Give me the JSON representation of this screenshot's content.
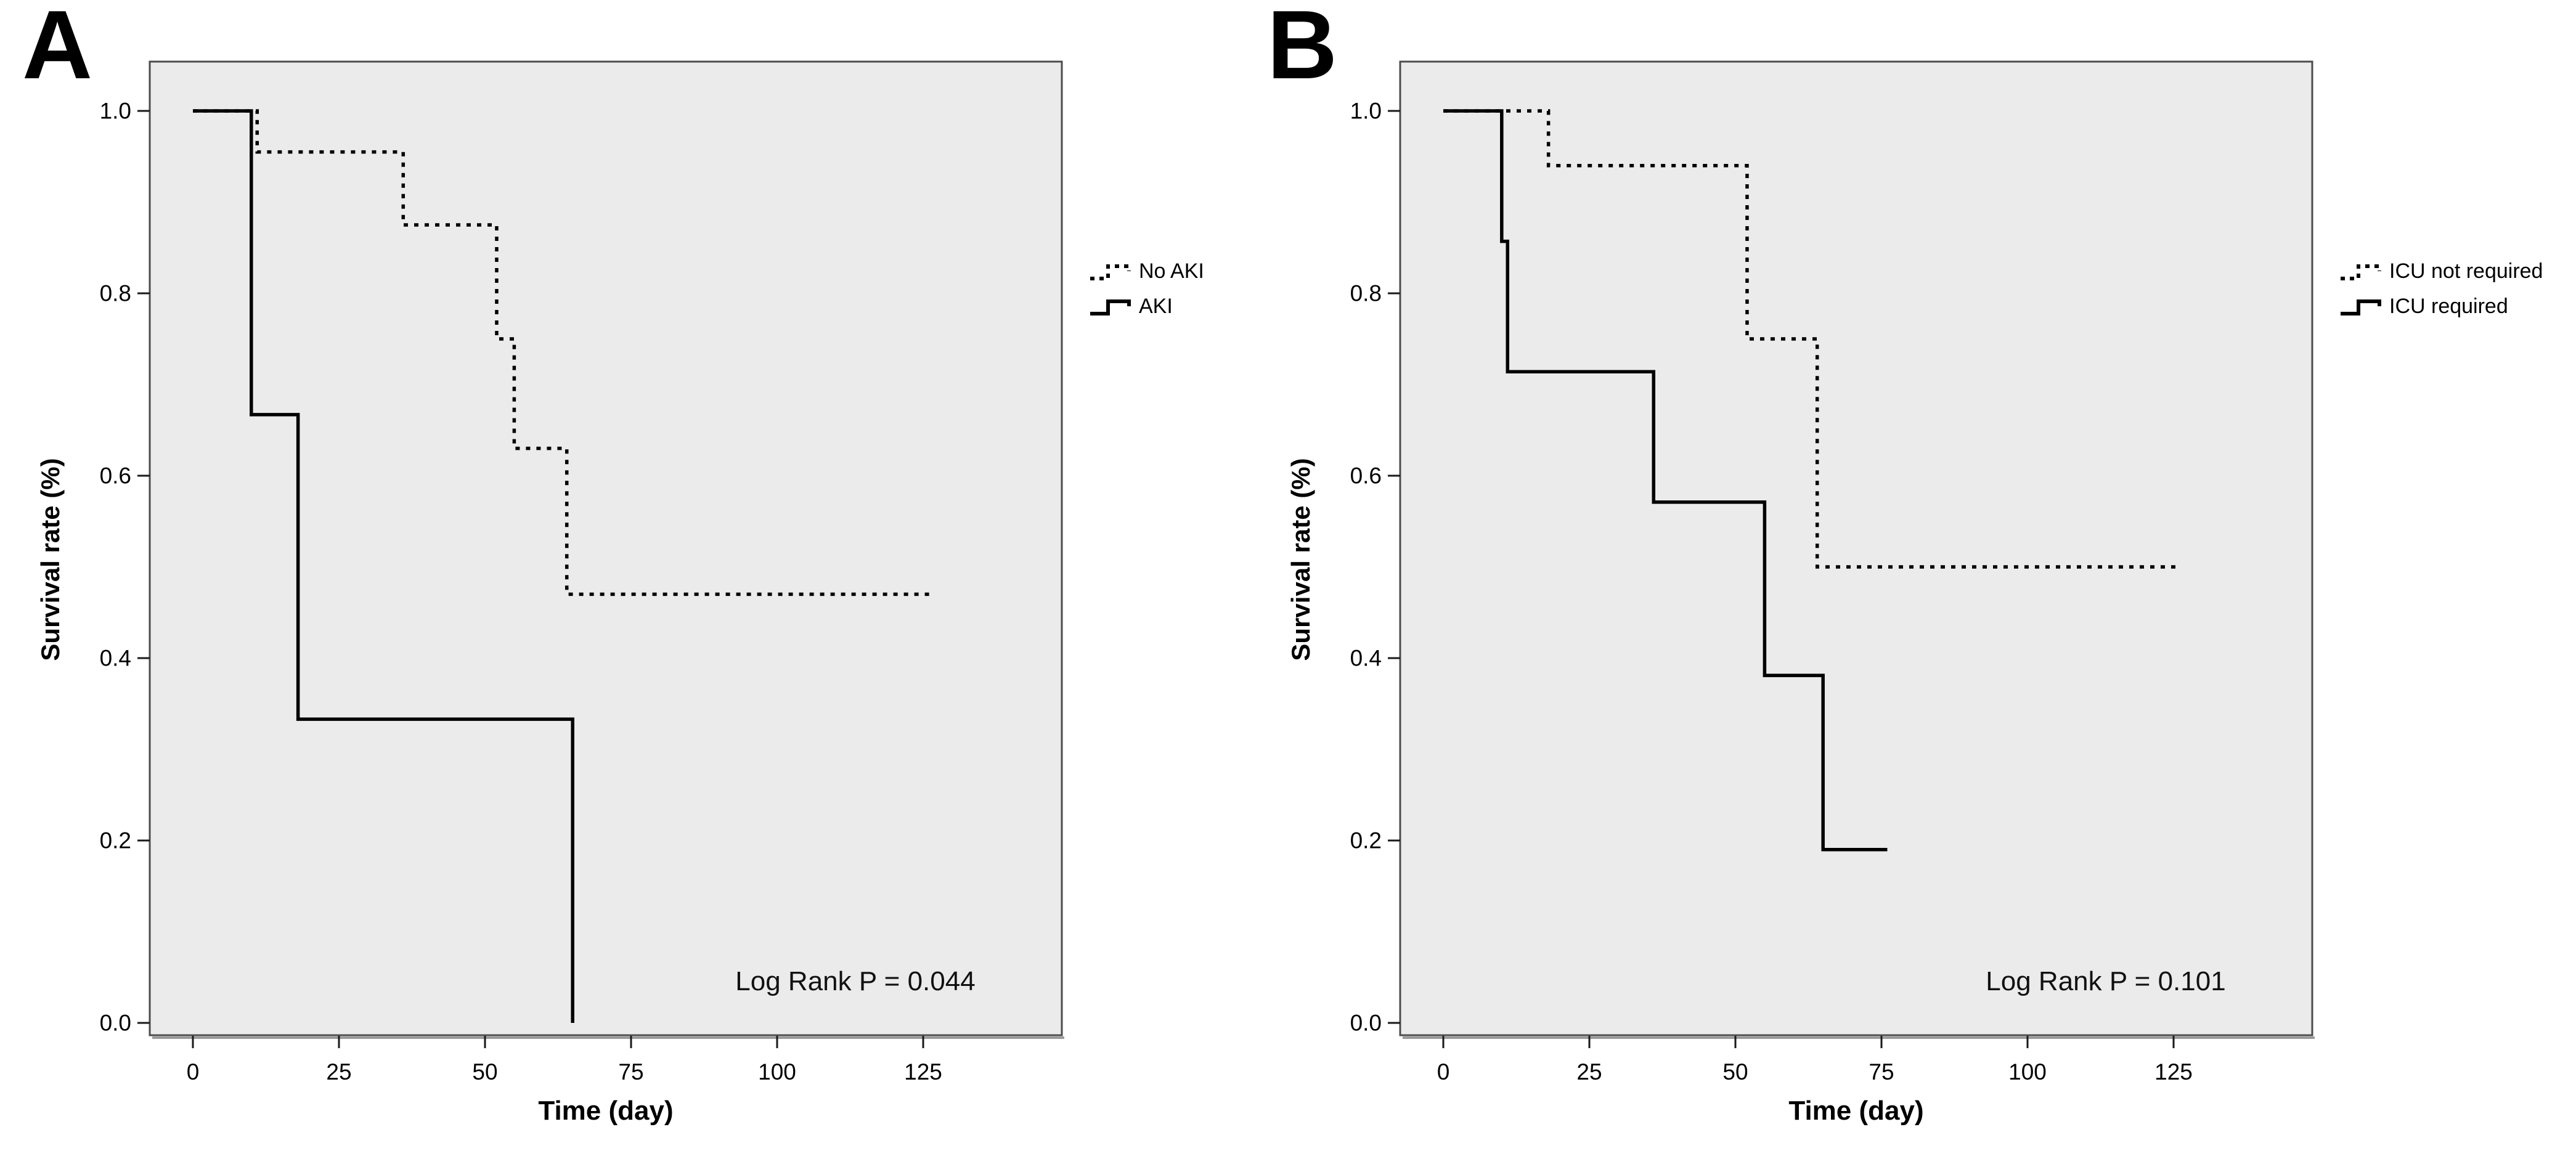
{
  "figure": {
    "background": "#ffffff",
    "plot_background": "#ebebeb",
    "frame_color": "#4c4c4c",
    "line_color": "#000000",
    "tick_color": "#1a1a1a"
  },
  "panels": [
    {
      "letter": "A",
      "y_label": "Survival rate (%)",
      "x_label": "Time (day)",
      "annotation": "Log Rank P = 0.044",
      "legend": [
        {
          "label": "No AKI",
          "style": "dashed"
        },
        {
          "label": "AKI",
          "style": "solid"
        }
      ]
    },
    {
      "letter": "B",
      "y_label": "Survival rate (%)",
      "x_label": "Time (day)",
      "annotation": "Log Rank P = 0.101",
      "legend": [
        {
          "label": "ICU not required",
          "style": "dashed"
        },
        {
          "label": "ICU required",
          "style": "solid"
        }
      ]
    }
  ],
  "chart_data": [
    {
      "type": "line",
      "subtype": "kaplan-meier-step",
      "panel": "A",
      "title": "",
      "xlabel": "Time (day)",
      "ylabel": "Survival rate (%)",
      "x_ticks": [
        0,
        25,
        50,
        75,
        100,
        125
      ],
      "y_ticks": [
        1.0,
        0.8,
        0.6,
        0.4,
        0.2,
        0.0
      ],
      "xlim": [
        -7.4,
        148.7
      ],
      "ylim": [
        -0.014,
        1.054
      ],
      "grid": false,
      "legend_position": "right-outside",
      "annotation": "Log Rank P = 0.044",
      "series": [
        {
          "name": "No AKI",
          "style": "dashed",
          "steps": [
            [
              0,
              1.0
            ],
            [
              11,
              0.955
            ],
            [
              36,
              0.875
            ],
            [
              52,
              0.75
            ],
            [
              55,
              0.63
            ],
            [
              64,
              0.47
            ]
          ],
          "end_day": 127
        },
        {
          "name": "AKI",
          "style": "solid",
          "steps": [
            [
              0,
              1.0
            ],
            [
              10,
              0.667
            ],
            [
              18,
              0.333
            ],
            [
              65,
              0.0
            ]
          ],
          "end_day": 65
        }
      ]
    },
    {
      "type": "line",
      "subtype": "kaplan-meier-step",
      "panel": "B",
      "title": "",
      "xlabel": "Time (day)",
      "ylabel": "Survival rate (%)",
      "x_ticks": [
        0,
        25,
        50,
        75,
        100,
        125
      ],
      "y_ticks": [
        1.0,
        0.8,
        0.6,
        0.4,
        0.2,
        0.0
      ],
      "xlim": [
        -7.4,
        148.7
      ],
      "ylim": [
        -0.014,
        1.054
      ],
      "grid": false,
      "legend_position": "right-outside",
      "annotation": "Log Rank P = 0.101",
      "series": [
        {
          "name": "ICU not required",
          "style": "dashed",
          "steps": [
            [
              0,
              1.0
            ],
            [
              18,
              0.94
            ],
            [
              52,
              0.75
            ],
            [
              64,
              0.5
            ]
          ],
          "end_day": 126
        },
        {
          "name": "ICU required",
          "style": "solid",
          "steps": [
            [
              0,
              1.0
            ],
            [
              10,
              0.857
            ],
            [
              11,
              0.714
            ],
            [
              36,
              0.571
            ],
            [
              55,
              0.381
            ],
            [
              65,
              0.19
            ]
          ],
          "end_day": 76
        }
      ]
    }
  ]
}
